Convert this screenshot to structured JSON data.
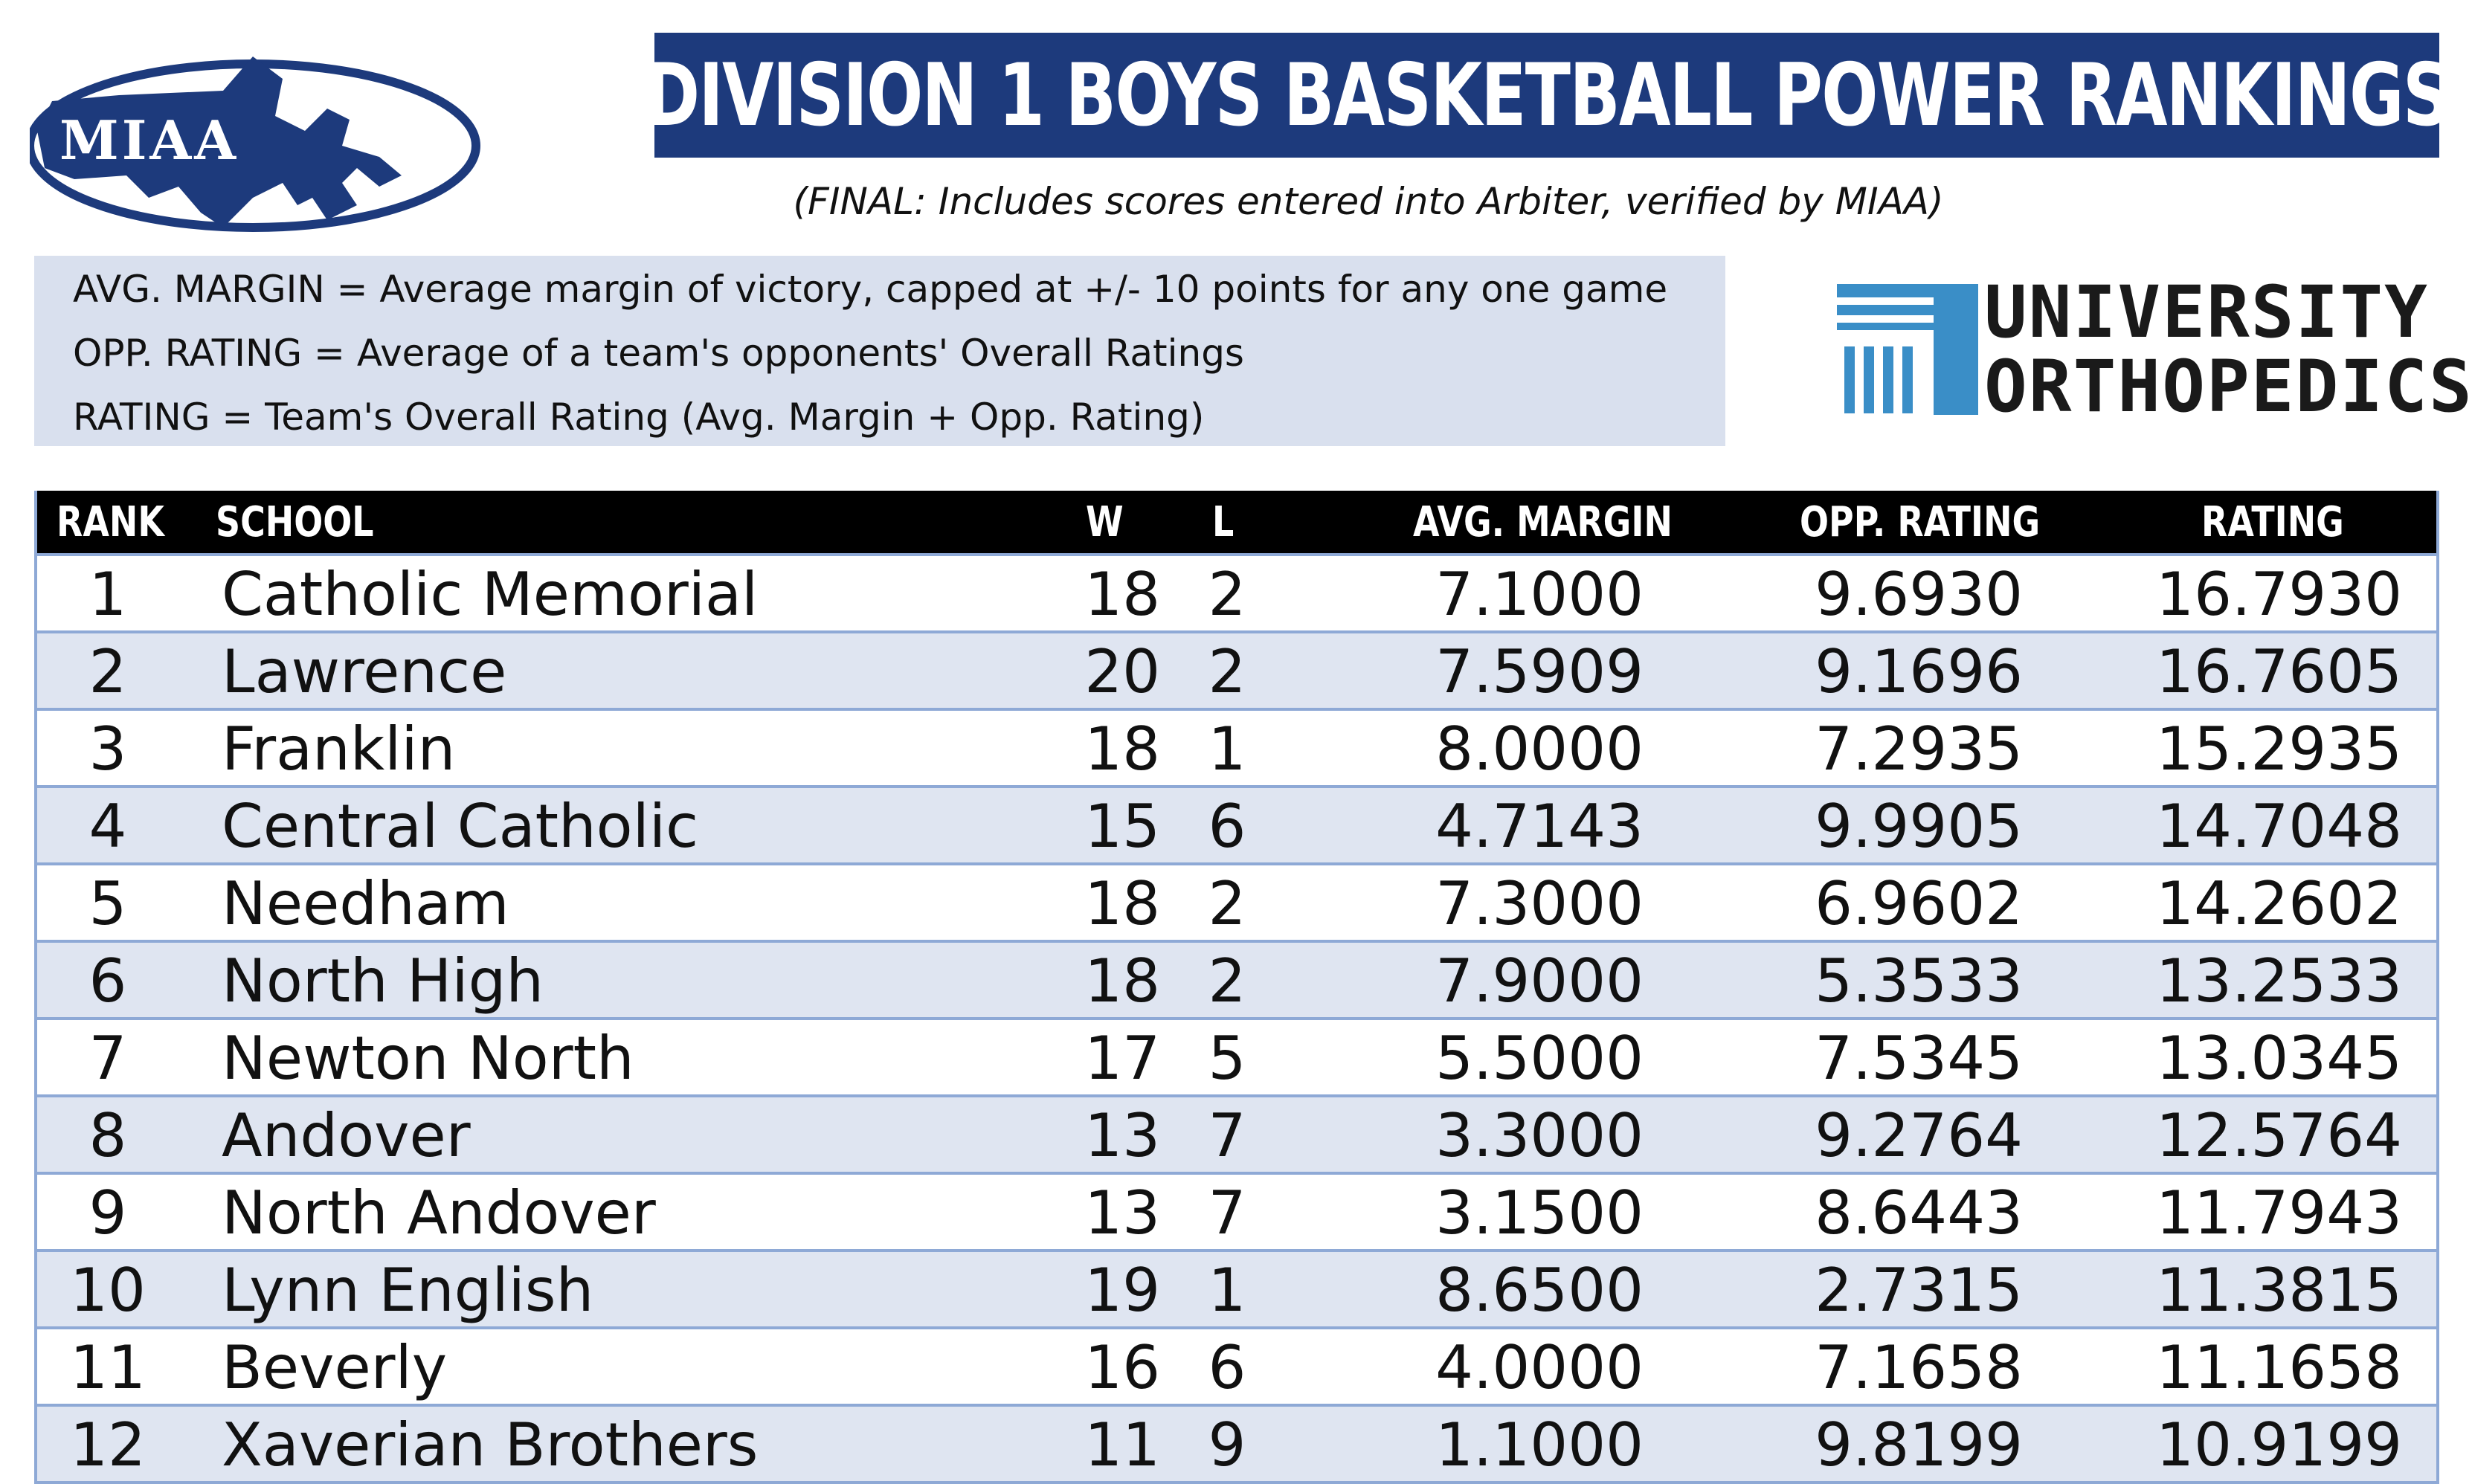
{
  "logo": {
    "text": "MIAA"
  },
  "header": {
    "title": "DIVISION 1 BOYS BASKETBALL POWER RANKINGS",
    "subtitle": "(FINAL: Includes scores entered into Arbiter, verified by MIAA)"
  },
  "legend": [
    {
      "term": "AVG. MARGIN",
      "definition": " = Average margin of victory, capped at +/- 10 points for any one game"
    },
    {
      "term": "OPP. RATING",
      "definition": " = Average of a team's opponents' Overall Ratings"
    },
    {
      "term": "RATING",
      "definition": " = Team's Overall Rating (Avg. Margin + Opp. Rating)"
    }
  ],
  "sponsor": {
    "line1": "UNIVERSITY",
    "line2": "ORTHOPEDICS"
  },
  "colors": {
    "title_bar": "#1d3a7c",
    "legend_bg": "#d9e0ee",
    "row_alt": "#dfe5f1",
    "border": "#8ea9d6"
  },
  "table": {
    "headers": {
      "rank": "RANK",
      "school": "SCHOOL",
      "w": "W",
      "l": "L",
      "avg": "AVG. MARGIN",
      "opp": "OPP. RATING",
      "rating": "RATING"
    },
    "rows": [
      {
        "rank": "1",
        "school": "Catholic Memorial",
        "w": "18",
        "l": "2",
        "avg": "7.1000",
        "opp": "9.6930",
        "rating": "16.7930"
      },
      {
        "rank": "2",
        "school": "Lawrence",
        "w": "20",
        "l": "2",
        "avg": "7.5909",
        "opp": "9.1696",
        "rating": "16.7605"
      },
      {
        "rank": "3",
        "school": "Franklin",
        "w": "18",
        "l": "1",
        "avg": "8.0000",
        "opp": "7.2935",
        "rating": "15.2935"
      },
      {
        "rank": "4",
        "school": "Central Catholic",
        "w": "15",
        "l": "6",
        "avg": "4.7143",
        "opp": "9.9905",
        "rating": "14.7048"
      },
      {
        "rank": "5",
        "school": "Needham",
        "w": "18",
        "l": "2",
        "avg": "7.3000",
        "opp": "6.9602",
        "rating": "14.2602"
      },
      {
        "rank": "6",
        "school": "North High",
        "w": "18",
        "l": "2",
        "avg": "7.9000",
        "opp": "5.3533",
        "rating": "13.2533"
      },
      {
        "rank": "7",
        "school": "Newton North",
        "w": "17",
        "l": "5",
        "avg": "5.5000",
        "opp": "7.5345",
        "rating": "13.0345"
      },
      {
        "rank": "8",
        "school": "Andover",
        "w": "13",
        "l": "7",
        "avg": "3.3000",
        "opp": "9.2764",
        "rating": "12.5764"
      },
      {
        "rank": "9",
        "school": "North Andover",
        "w": "13",
        "l": "7",
        "avg": "3.1500",
        "opp": "8.6443",
        "rating": "11.7943"
      },
      {
        "rank": "10",
        "school": "Lynn English",
        "w": "19",
        "l": "1",
        "avg": "8.6500",
        "opp": "2.7315",
        "rating": "11.3815"
      },
      {
        "rank": "11",
        "school": "Beverly",
        "w": "16",
        "l": "6",
        "avg": "4.0000",
        "opp": "7.1658",
        "rating": "11.1658"
      },
      {
        "rank": "12",
        "school": "Xaverian Brothers",
        "w": "11",
        "l": "9",
        "avg": "1.1000",
        "opp": "9.8199",
        "rating": "10.9199"
      }
    ]
  }
}
